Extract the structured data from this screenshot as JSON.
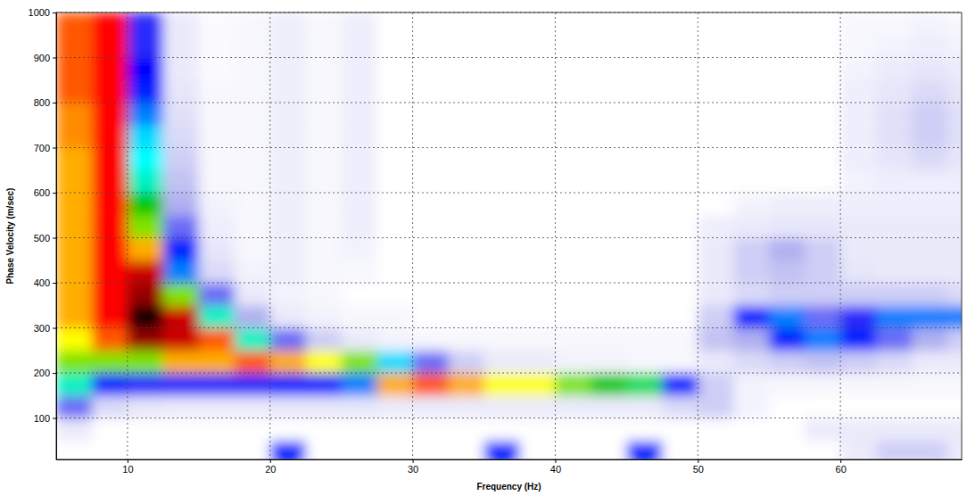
{
  "chart_data": {
    "type": "heatmap",
    "x_label": "Frequency (Hz)",
    "y_label": "Phase Velocity (m/sec)",
    "xlim": [
      5,
      68.5
    ],
    "ylim": [
      8,
      1000
    ],
    "xticks": [
      10,
      20,
      30,
      40,
      50,
      60
    ],
    "yticks": [
      100,
      200,
      300,
      400,
      500,
      600,
      700,
      800,
      900,
      1000
    ],
    "grid": true,
    "zlim": [
      0,
      1
    ],
    "x_edges": [
      5,
      7.5,
      10,
      12.5,
      15,
      17.5,
      20,
      22.5,
      25,
      27.5,
      30,
      32.5,
      35,
      37.5,
      40,
      42.5,
      45,
      47.5,
      50,
      52.5,
      55,
      57.5,
      60,
      62.5,
      65,
      67.5,
      70
    ],
    "y_edges": [
      0,
      50,
      100,
      150,
      200,
      250,
      300,
      350,
      400,
      450,
      500,
      550,
      600,
      650,
      700,
      750,
      800,
      850,
      900,
      950,
      1000
    ],
    "z": [
      [
        0,
        0,
        0,
        0,
        0,
        0,
        0.3,
        0,
        0,
        0,
        0,
        0,
        0.3,
        0,
        0,
        0,
        0.3,
        0,
        0,
        0,
        0,
        0,
        0.05,
        0.1,
        0.1,
        0.05
      ],
      [
        0.05,
        0,
        0,
        0,
        0,
        0,
        0,
        0,
        0,
        0,
        0,
        0,
        0,
        0,
        0,
        0,
        0,
        0,
        0,
        0,
        0,
        0.05,
        0.05,
        0.05,
        0.05,
        0.05
      ],
      [
        0.2,
        0.08,
        0.06,
        0.05,
        0.05,
        0.05,
        0.06,
        0.06,
        0.06,
        0.05,
        0.05,
        0.05,
        0.05,
        0.05,
        0.05,
        0.05,
        0.05,
        0.08,
        0.1,
        0.03,
        0,
        0,
        0,
        0,
        0,
        0
      ],
      [
        0.45,
        0.3,
        0.25,
        0.25,
        0.25,
        0.25,
        0.3,
        0.3,
        0.35,
        0.7,
        0.75,
        0.7,
        0.65,
        0.65,
        0.6,
        0.55,
        0.5,
        0.3,
        0.1,
        0.03,
        0.02,
        0.02,
        0.02,
        0.02,
        0.02,
        0.02
      ],
      [
        0.6,
        0.6,
        0.6,
        0.7,
        0.7,
        0.75,
        0.7,
        0.65,
        0.6,
        0.4,
        0.2,
        0.1,
        0.05,
        0.05,
        0.03,
        0.03,
        0.02,
        0.02,
        0.05,
        0.08,
        0.1,
        0.12,
        0.1,
        0.08,
        0.05,
        0.05
      ],
      [
        0.65,
        0.75,
        0.9,
        0.85,
        0.75,
        0.45,
        0.2,
        0.1,
        0.05,
        0.03,
        0.02,
        0.02,
        0.02,
        0.02,
        0.02,
        0.02,
        0.02,
        0.02,
        0.12,
        0.15,
        0.3,
        0.35,
        0.3,
        0.2,
        0.15,
        0.1
      ],
      [
        0.7,
        0.8,
        1.0,
        0.85,
        0.45,
        0.15,
        0.05,
        0.03,
        0.02,
        0.02,
        0,
        0,
        0,
        0,
        0,
        0,
        0,
        0,
        0.1,
        0.3,
        0.35,
        0.2,
        0.25,
        0.35,
        0.35,
        0.35
      ],
      [
        0.7,
        0.8,
        0.9,
        0.6,
        0.2,
        0.05,
        0.03,
        0.02,
        0,
        0,
        0,
        0,
        0,
        0,
        0,
        0,
        0,
        0,
        0.05,
        0.08,
        0.1,
        0.1,
        0.1,
        0.1,
        0.1,
        0.08
      ],
      [
        0.7,
        0.8,
        0.85,
        0.35,
        0.08,
        0.03,
        0.04,
        0.02,
        0.02,
        0,
        0,
        0,
        0,
        0,
        0,
        0,
        0,
        0,
        0.05,
        0.1,
        0.12,
        0.1,
        0.06,
        0.05,
        0.05,
        0.05
      ],
      [
        0.7,
        0.8,
        0.7,
        0.3,
        0.06,
        0.02,
        0.04,
        0.02,
        0.03,
        0,
        0,
        0,
        0,
        0,
        0,
        0,
        0,
        0,
        0.05,
        0.1,
        0.15,
        0.1,
        0.05,
        0.05,
        0.05,
        0.05
      ],
      [
        0.7,
        0.8,
        0.6,
        0.2,
        0.04,
        0.02,
        0.04,
        0.02,
        0.04,
        0,
        0,
        0,
        0,
        0,
        0,
        0,
        0,
        0,
        0.04,
        0.05,
        0.06,
        0.06,
        0.05,
        0.05,
        0.05,
        0.05
      ],
      [
        0.7,
        0.8,
        0.55,
        0.15,
        0.03,
        0.02,
        0.04,
        0.02,
        0.04,
        0,
        0,
        0,
        0,
        0,
        0,
        0,
        0,
        0,
        0,
        0.03,
        0.04,
        0.04,
        0.04,
        0.04,
        0.04,
        0.04
      ],
      [
        0.7,
        0.8,
        0.45,
        0.12,
        0.02,
        0.02,
        0.04,
        0.02,
        0.04,
        0,
        0,
        0,
        0,
        0,
        0,
        0,
        0,
        0,
        0,
        0,
        0,
        0,
        0.03,
        0.04,
        0.04,
        0.04
      ],
      [
        0.7,
        0.8,
        0.42,
        0.1,
        0.02,
        0.02,
        0.04,
        0.02,
        0.04,
        0,
        0,
        0,
        0,
        0,
        0,
        0,
        0,
        0,
        0,
        0,
        0,
        0,
        0.04,
        0.06,
        0.08,
        0.06
      ],
      [
        0.72,
        0.8,
        0.4,
        0.08,
        0.02,
        0.02,
        0.04,
        0.02,
        0.04,
        0,
        0,
        0,
        0,
        0,
        0,
        0,
        0,
        0,
        0,
        0,
        0,
        0,
        0.04,
        0.07,
        0.1,
        0.07
      ],
      [
        0.72,
        0.8,
        0.35,
        0.07,
        0.02,
        0.02,
        0.04,
        0.02,
        0.04,
        0,
        0,
        0,
        0,
        0,
        0,
        0,
        0,
        0,
        0,
        0,
        0,
        0,
        0.04,
        0.07,
        0.1,
        0.07
      ],
      [
        0.75,
        0.8,
        0.3,
        0.06,
        0.02,
        0.02,
        0.04,
        0.02,
        0.04,
        0,
        0,
        0,
        0,
        0,
        0,
        0,
        0,
        0,
        0,
        0,
        0,
        0,
        0.04,
        0.06,
        0.08,
        0.06
      ],
      [
        0.75,
        0.8,
        0.28,
        0.05,
        0.01,
        0.02,
        0.04,
        0.02,
        0.04,
        0,
        0,
        0,
        0,
        0,
        0,
        0,
        0,
        0,
        0,
        0,
        0,
        0,
        0.03,
        0.05,
        0.06,
        0.05
      ],
      [
        0.75,
        0.8,
        0.25,
        0.05,
        0.01,
        0.02,
        0.04,
        0.02,
        0.04,
        0,
        0,
        0,
        0,
        0,
        0,
        0,
        0,
        0,
        0,
        0,
        0,
        0,
        0.02,
        0.03,
        0.04,
        0.03
      ],
      [
        0.75,
        0.8,
        0.25,
        0.05,
        0.01,
        0.02,
        0.04,
        0.02,
        0.04,
        0,
        0,
        0,
        0,
        0,
        0,
        0,
        0,
        0,
        0,
        0,
        0,
        0,
        0.02,
        0.02,
        0.03,
        0.02
      ]
    ]
  }
}
